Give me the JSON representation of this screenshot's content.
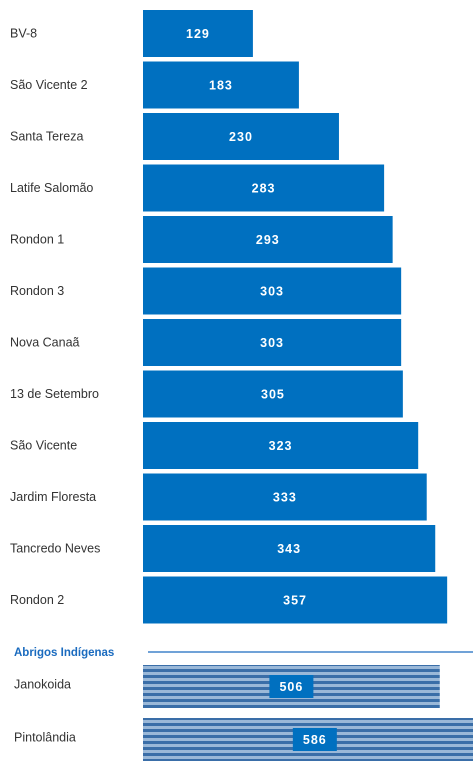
{
  "chart_data": {
    "type": "bar",
    "orientation": "horizontal",
    "series": [
      {
        "categories": [
          "BV-8",
          "São Vicente 2",
          "Santa Tereza",
          "Latife Salomão",
          "Rondon 1",
          "Rondon 3",
          "Nova Canaã",
          "13 de Setembro",
          "São Vicente",
          "Jardim Floresta",
          "Tancredo Neves",
          "Rondon 2"
        ],
        "values": [
          129,
          183,
          230,
          283,
          293,
          303,
          303,
          305,
          323,
          333,
          343,
          357
        ]
      }
    ],
    "section": {
      "title": "Abrigos Indígenas",
      "categories": [
        "Janokoida",
        "Pintolândia"
      ],
      "values": [
        506,
        586
      ]
    },
    "xlabel": "",
    "ylabel": ""
  },
  "colors": {
    "bar": "#0070c0",
    "section_bar_light": "#9ab8d8",
    "section_bar_stripe": "#3a6ea8",
    "section_label": "#1a6bbf",
    "section_line": "#1a6bbf"
  }
}
